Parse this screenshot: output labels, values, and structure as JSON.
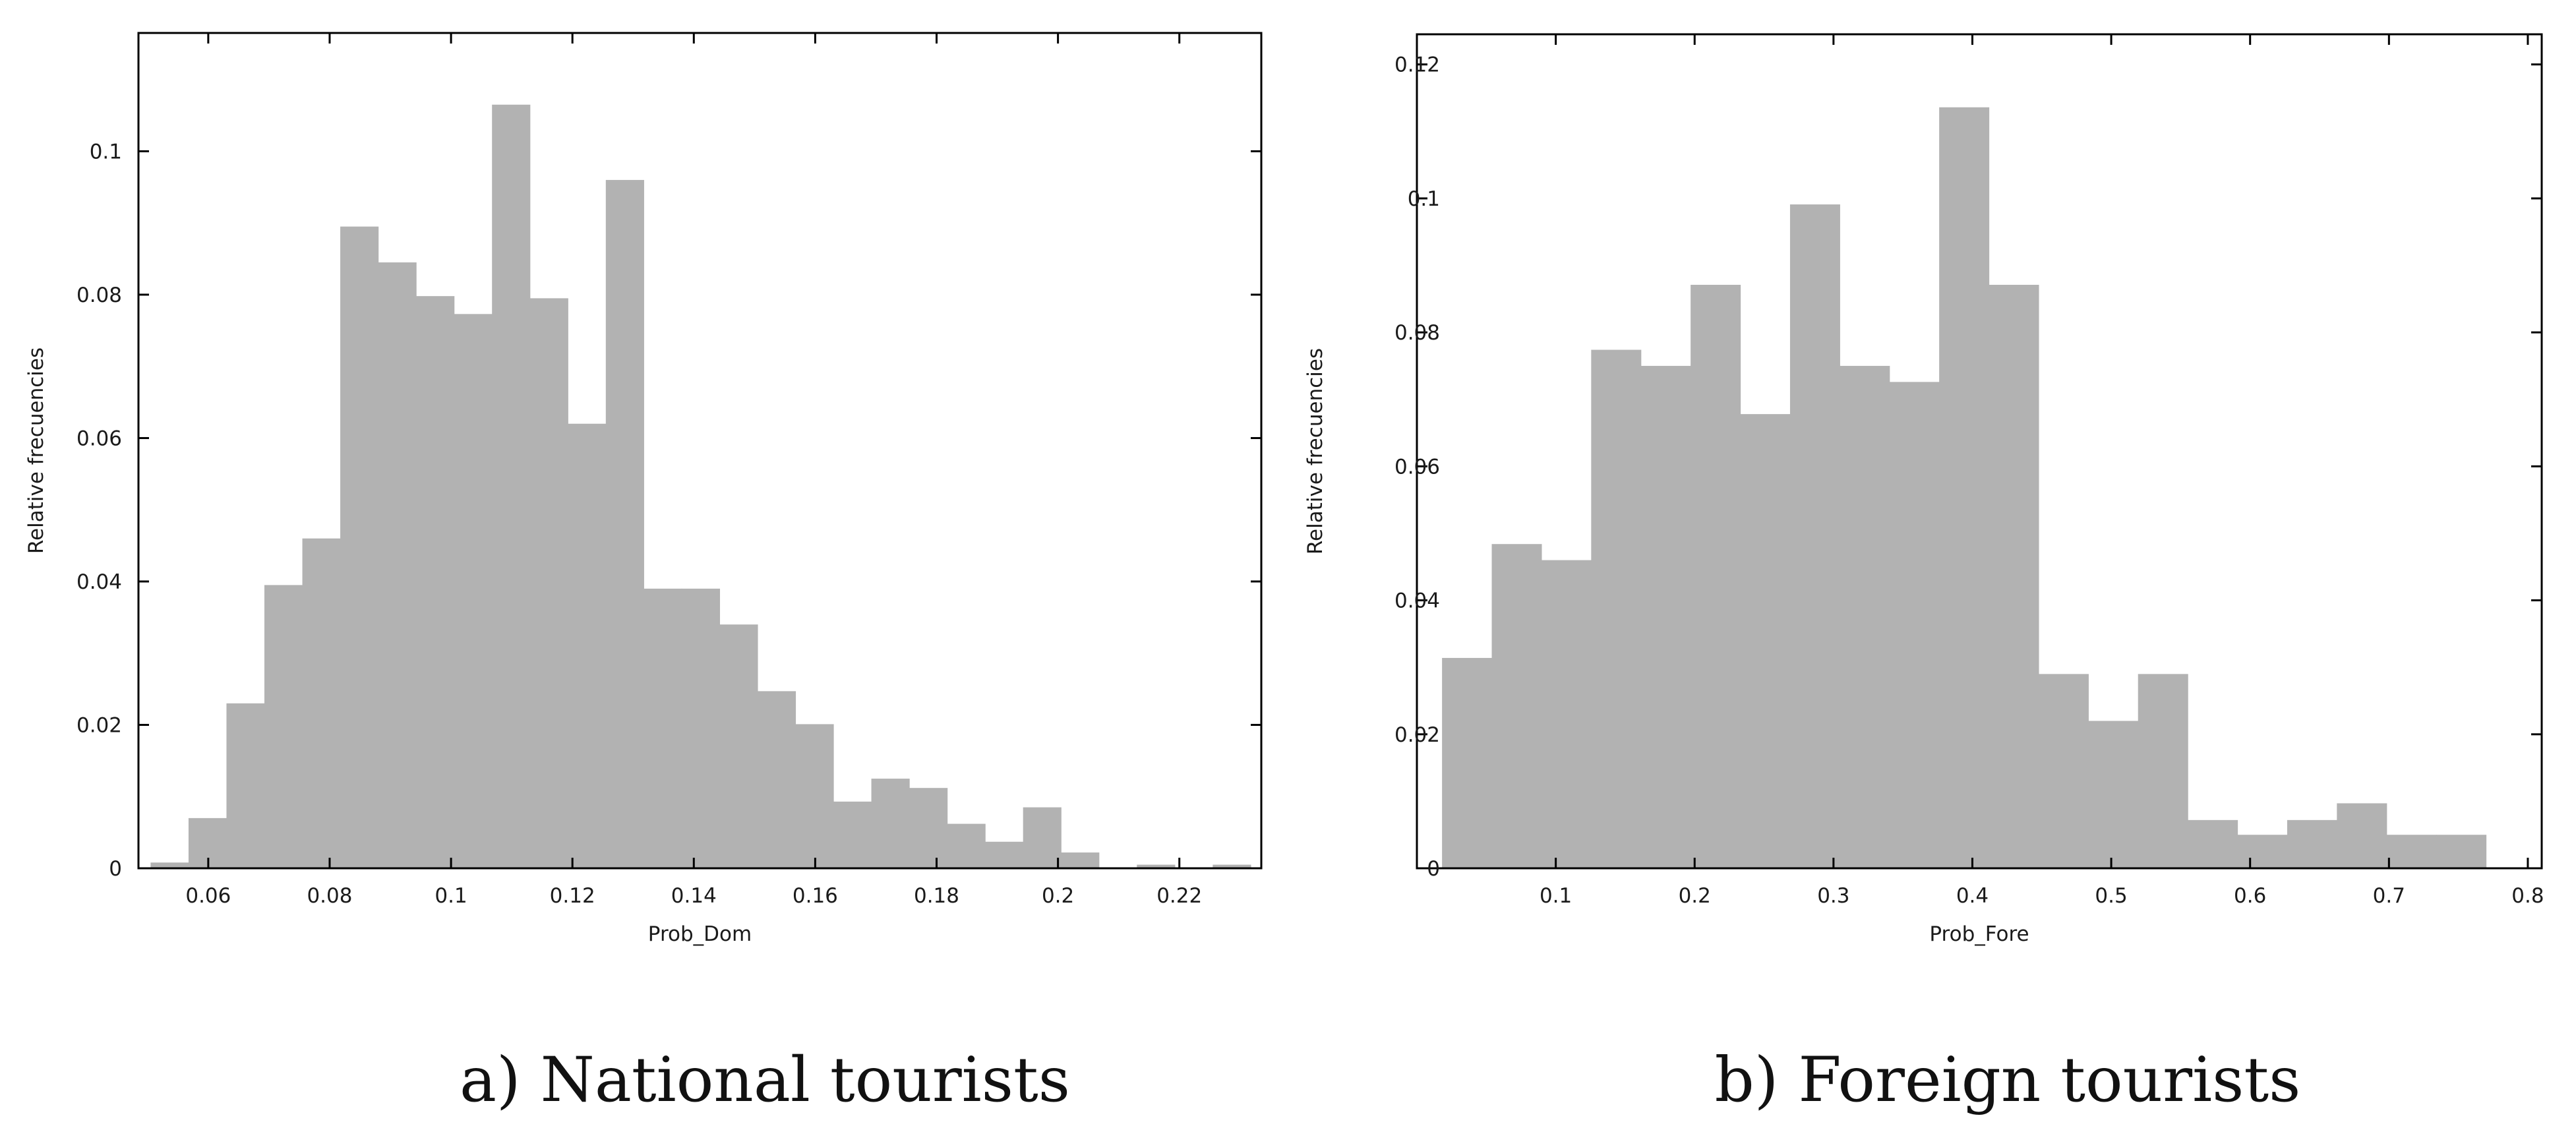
{
  "chart_data": [
    {
      "type": "bar",
      "panel_id": "a",
      "caption": "a) National tourists",
      "xlabel": "Prob_Dom",
      "ylabel": "Relative frecuencies",
      "xlim": [
        0.0485,
        0.2335
      ],
      "ylim": [
        0,
        0.1165
      ],
      "xticks": [
        0.06,
        0.08,
        0.1,
        0.12,
        0.14,
        0.16,
        0.18,
        0.2,
        0.22
      ],
      "xtick_labels": [
        "0.06",
        "0.08",
        "0.1",
        "0.12",
        "0.14",
        "0.16",
        "0.18",
        "0.2",
        "0.22"
      ],
      "yticks": [
        0,
        0.02,
        0.04,
        0.06,
        0.08,
        0.1
      ],
      "ytick_labels": [
        "0",
        "0.02",
        "0.04",
        "0.06",
        "0.08",
        "0.1"
      ],
      "bin_start": 0.0505,
      "bin_width": 0.00625,
      "values": [
        0.0008,
        0.007,
        0.023,
        0.0395,
        0.046,
        0.0895,
        0.0845,
        0.0798,
        0.0773,
        0.1065,
        0.0795,
        0.062,
        0.096,
        0.039,
        0.039,
        0.034,
        0.0247,
        0.0201,
        0.0093,
        0.0125,
        0.0112,
        0.0062,
        0.0037,
        0.0085,
        0.0022,
        0,
        0.0005,
        0,
        0.0005
      ],
      "color": "#b2b2b2",
      "grid": false
    },
    {
      "type": "bar",
      "panel_id": "b",
      "caption": "b) Foreign tourists",
      "xlabel": "Prob_Fore",
      "ylabel": "Relative frecuencies",
      "xlim": [
        0,
        0.81
      ],
      "ylim": [
        0,
        0.1245
      ],
      "xticks": [
        0.1,
        0.2,
        0.3,
        0.4,
        0.5,
        0.6,
        0.7,
        0.8
      ],
      "xtick_labels": [
        "0.1",
        "0.2",
        "0.3",
        "0.4",
        "0.5",
        "0.6",
        "0.7",
        "0.8"
      ],
      "yticks": [
        0,
        0.02,
        0.04,
        0.06,
        0.08,
        0.1,
        0.12
      ],
      "ytick_labels": [
        "0",
        "0.02",
        "0.04",
        "0.06",
        "0.08",
        "0.1",
        "0.12"
      ],
      "bin_start": 0.0181,
      "bin_width": 0.0358,
      "values": [
        0.0314,
        0.0484,
        0.046,
        0.0774,
        0.075,
        0.0871,
        0.0678,
        0.0991,
        0.075,
        0.0726,
        0.1136,
        0.0871,
        0.029,
        0.022,
        0.029,
        0.0072,
        0.005,
        0.0072,
        0.0097,
        0.005,
        0.005
      ],
      "color": "#b2b2b2",
      "grid": false
    }
  ]
}
